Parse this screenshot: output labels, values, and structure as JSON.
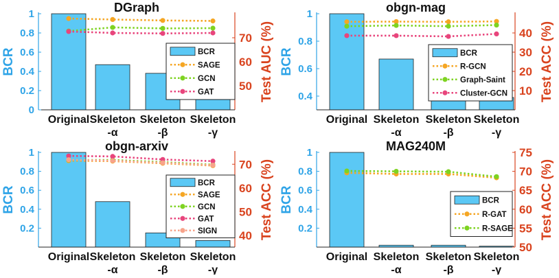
{
  "colors": {
    "bar": "#5BC8F5",
    "left_axis": "#2FA4E7",
    "right_axis": "#D9431E",
    "palette": [
      "#F5A623",
      "#7ED321",
      "#E8457C",
      "#F7A38A"
    ]
  },
  "chart_data": [
    {
      "type": "bar+line",
      "title": "DGraph",
      "categories": [
        [
          "Original"
        ],
        [
          "Skeleton",
          "-α"
        ],
        [
          "Skeleton",
          "-β"
        ],
        [
          "Skeleton",
          "-γ"
        ]
      ],
      "ylabel_left": "BCR",
      "ylabel_right": "Test AUC (%)",
      "ylim_left": [
        0,
        1
      ],
      "yticks_left": [
        "0",
        "0.2",
        "0.4",
        "0.6",
        "0.8",
        "1"
      ],
      "yticks_left_values": [
        0,
        0.2,
        0.4,
        0.6,
        0.8,
        1
      ],
      "ylim_right": [
        40,
        80
      ],
      "yticks_right": [
        "50",
        "60",
        "70"
      ],
      "yticks_right_values": [
        50,
        60,
        70
      ],
      "bars": {
        "name": "BCR",
        "values": [
          1.0,
          0.47,
          0.38,
          0.15
        ]
      },
      "series": [
        {
          "name": "SAGE",
          "values": [
            78.0,
            77.6,
            77.2,
            77.0
          ]
        },
        {
          "name": "GCN",
          "values": [
            72.8,
            74.3,
            73.9,
            74.0
          ]
        },
        {
          "name": "GAT",
          "values": [
            72.6,
            72.0,
            71.8,
            72.0
          ]
        }
      ],
      "legend": {
        "position": "right",
        "entries": [
          "BCR",
          "SAGE",
          "GCN",
          "GAT"
        ]
      }
    },
    {
      "type": "bar+line",
      "title": "obgn-mag",
      "categories": [
        [
          "Original"
        ],
        [
          "Skeleton",
          "-α"
        ],
        [
          "Skeleton",
          "-β"
        ],
        [
          "Skeleton",
          "-γ"
        ]
      ],
      "ylabel_left": "BCR",
      "ylabel_right": "Test ACC (%)",
      "ylim_left": [
        0.3,
        1
      ],
      "yticks_left": [
        "0.4",
        "0.6",
        "0.8",
        "1"
      ],
      "yticks_left_values": [
        0.4,
        0.6,
        0.8,
        1
      ],
      "ylim_right": [
        0,
        50
      ],
      "yticks_right": [
        "10",
        "20",
        "30",
        "40"
      ],
      "yticks_right_values": [
        10,
        20,
        30,
        40
      ],
      "bars": {
        "name": "BCR",
        "values": [
          1.0,
          0.67,
          0.55,
          0.39
        ]
      },
      "series": [
        {
          "name": "R-GCN",
          "values": [
            45.8,
            45.9,
            45.8,
            46.0
          ]
        },
        {
          "name": "Graph-Saint",
          "values": [
            43.5,
            43.9,
            43.5,
            44.1
          ]
        },
        {
          "name": "Cluster-GCN",
          "values": [
            38.6,
            38.6,
            38.2,
            39.5
          ]
        }
      ],
      "legend": {
        "position": "right",
        "entries": [
          "BCR",
          "R-GCN",
          "Graph-Saint",
          "Cluster-GCN"
        ]
      }
    },
    {
      "type": "bar+line",
      "title": "obgn-arxiv",
      "categories": [
        [
          "Original"
        ],
        [
          "Skeleton",
          "-α"
        ],
        [
          "Skeleton",
          "-β"
        ],
        [
          "Skeleton",
          "-γ"
        ]
      ],
      "ylabel_left": "BCR",
      "ylabel_right": "Test ACC (%)",
      "ylim_left": [
        0,
        1
      ],
      "yticks_left": [
        "0.2",
        "0.4",
        "0.6",
        "0.8",
        "1"
      ],
      "yticks_left_values": [
        0.2,
        0.4,
        0.6,
        0.8,
        1
      ],
      "ylim_right": [
        35,
        75
      ],
      "yticks_right": [
        "40",
        "50",
        "60",
        "70"
      ],
      "yticks_right_values": [
        40,
        50,
        60,
        70
      ],
      "bars": {
        "name": "BCR",
        "values": [
          1.0,
          0.48,
          0.15,
          0.07
        ]
      },
      "series": [
        {
          "name": "SAGE",
          "values": [
            71.5,
            71.3,
            70.4,
            69.4
          ]
        },
        {
          "name": "GCN",
          "values": [
            71.8,
            71.8,
            70.9,
            69.8
          ]
        },
        {
          "name": "GAT",
          "values": [
            73.5,
            73.3,
            72.0,
            71.3
          ]
        },
        {
          "name": "SIGN",
          "values": [
            71.9,
            71.5,
            70.6,
            69.6
          ]
        }
      ],
      "legend": {
        "position": "right",
        "entries": [
          "BCR",
          "SAGE",
          "GCN",
          "GAT",
          "SIGN"
        ]
      }
    },
    {
      "type": "bar+line",
      "title": "MAG240M",
      "categories": [
        [
          "Original"
        ],
        [
          "Skeleton",
          "-α"
        ],
        [
          "Skeleton",
          "-β"
        ],
        [
          "Skeleton",
          "-γ"
        ]
      ],
      "ylabel_left": "BCR",
      "ylabel_right": "Test ACC (%)",
      "ylim_left": [
        0,
        1
      ],
      "yticks_left": [
        "0.2",
        "0.4",
        "0.6",
        "0.8",
        "1"
      ],
      "yticks_left_values": [
        0.2,
        0.4,
        0.6,
        0.8,
        1
      ],
      "ylim_right": [
        50,
        75
      ],
      "yticks_right": [
        "50",
        "55",
        "60",
        "65",
        "70",
        "75"
      ],
      "yticks_right_values": [
        50,
        55,
        60,
        65,
        70,
        75
      ],
      "bars": {
        "name": "BCR",
        "values": [
          1.0,
          0.02,
          0.02,
          0.01
        ]
      },
      "series": [
        {
          "name": "R-GAT",
          "values": [
            69.6,
            69.3,
            69.3,
            68.3
          ]
        },
        {
          "name": "R-SAGE",
          "values": [
            70.1,
            70.0,
            69.9,
            68.6
          ]
        }
      ],
      "legend": {
        "position": "right",
        "entries": [
          "BCR",
          "R-GAT",
          "R-SAGE"
        ]
      }
    }
  ]
}
